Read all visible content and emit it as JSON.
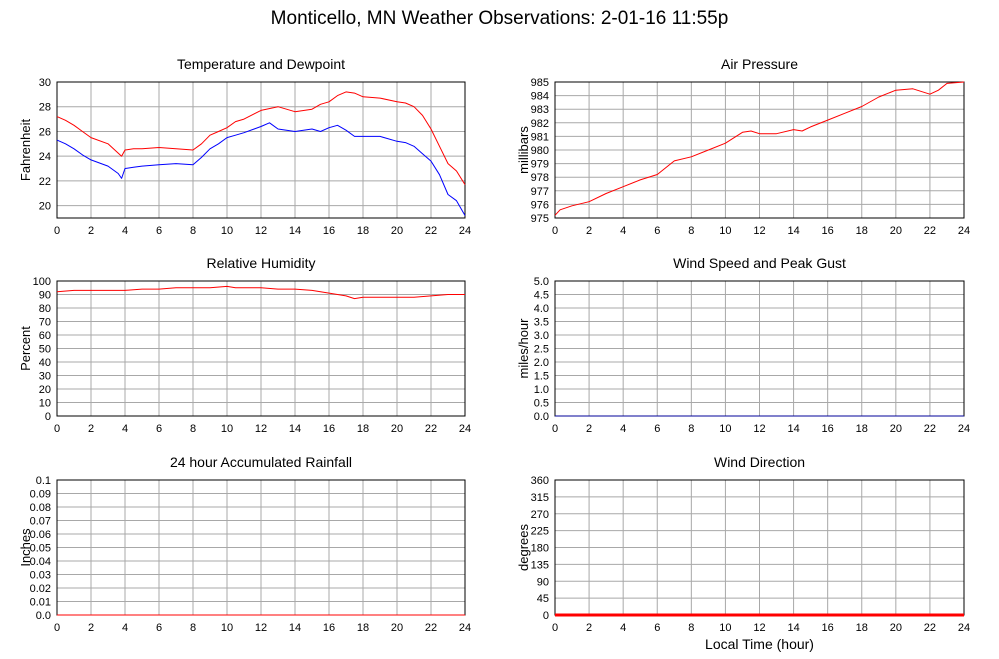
{
  "page": {
    "title": "Monticello, MN Weather Observations: 2-01-16 11:55p",
    "xaxis_label": "Local Time (hour)"
  },
  "chart_data": [
    {
      "type": "line",
      "title": "Temperature and Dewpoint",
      "xlabel": "",
      "ylabel": "Fahrenheit",
      "xlim": [
        0,
        24
      ],
      "ylim": [
        19,
        30
      ],
      "x_ticks": [
        0,
        2,
        4,
        6,
        8,
        10,
        12,
        14,
        16,
        18,
        20,
        22,
        24
      ],
      "y_ticks": [
        20,
        22,
        24,
        26,
        28,
        30
      ],
      "grid": true,
      "series": [
        {
          "color": "#ff0000",
          "x": [
            0,
            0.5,
            1,
            1.5,
            2,
            3,
            3.8,
            4,
            4.5,
            5,
            6,
            7,
            8,
            8.5,
            9,
            9.5,
            10,
            10.5,
            11,
            12,
            13,
            14,
            15,
            15.5,
            16,
            16.5,
            17,
            17.5,
            18,
            19,
            20,
            20.5,
            21,
            21.5,
            22,
            22.5,
            23,
            23.5,
            24
          ],
          "y": [
            27.2,
            26.9,
            26.5,
            26.0,
            25.5,
            25.0,
            24.0,
            24.5,
            24.6,
            24.6,
            24.7,
            24.6,
            24.5,
            25.0,
            25.7,
            26.0,
            26.3,
            26.8,
            27.0,
            27.7,
            28.0,
            27.6,
            27.8,
            28.2,
            28.4,
            28.9,
            29.2,
            29.1,
            28.8,
            28.7,
            28.4,
            28.3,
            28.0,
            27.3,
            26.2,
            24.8,
            23.4,
            22.8,
            21.7
          ]
        },
        {
          "color": "#0000ff",
          "x": [
            0,
            0.5,
            1,
            1.5,
            2,
            3,
            3.6,
            3.8,
            4,
            4.5,
            5,
            6,
            7,
            8,
            8.5,
            9,
            9.5,
            10,
            10.5,
            11,
            12,
            12.5,
            13,
            14,
            15,
            15.5,
            16,
            16.5,
            17,
            17.5,
            18,
            19,
            20,
            20.5,
            21,
            21.5,
            22,
            22.5,
            23,
            23.5,
            24
          ],
          "y": [
            25.3,
            25.0,
            24.6,
            24.1,
            23.7,
            23.2,
            22.6,
            22.2,
            23.0,
            23.1,
            23.2,
            23.3,
            23.4,
            23.3,
            23.9,
            24.6,
            25.0,
            25.5,
            25.7,
            25.9,
            26.4,
            26.7,
            26.2,
            26.0,
            26.2,
            26.0,
            26.3,
            26.5,
            26.1,
            25.6,
            25.6,
            25.6,
            25.2,
            25.1,
            24.8,
            24.2,
            23.6,
            22.5,
            20.9,
            20.4,
            19.2
          ]
        }
      ]
    },
    {
      "type": "line",
      "title": "Air Pressure",
      "xlabel": "",
      "ylabel": "millibars",
      "xlim": [
        0,
        24
      ],
      "ylim": [
        975,
        985
      ],
      "x_ticks": [
        0,
        2,
        4,
        6,
        8,
        10,
        12,
        14,
        16,
        18,
        20,
        22,
        24
      ],
      "y_ticks": [
        975,
        976,
        977,
        978,
        979,
        980,
        981,
        982,
        983,
        984,
        985
      ],
      "grid": true,
      "series": [
        {
          "color": "#ff0000",
          "x": [
            0,
            0.3,
            1,
            2,
            3,
            4,
            5,
            6,
            7,
            8,
            9,
            10,
            11,
            11.5,
            12,
            13,
            14,
            14.5,
            15,
            16,
            17,
            18,
            19,
            20,
            21,
            22,
            22.5,
            23,
            24
          ],
          "y": [
            975.2,
            975.6,
            975.9,
            976.2,
            976.8,
            977.3,
            977.8,
            978.2,
            979.2,
            979.5,
            980.0,
            980.5,
            981.3,
            981.4,
            981.2,
            981.2,
            981.5,
            981.4,
            981.7,
            982.2,
            982.7,
            983.2,
            983.9,
            984.4,
            984.5,
            984.1,
            984.4,
            984.9,
            985.0
          ]
        }
      ]
    },
    {
      "type": "line",
      "title": "Relative Humidity",
      "xlabel": "",
      "ylabel": "Percent",
      "xlim": [
        0,
        24
      ],
      "ylim": [
        0,
        100
      ],
      "x_ticks": [
        0,
        2,
        4,
        6,
        8,
        10,
        12,
        14,
        16,
        18,
        20,
        22,
        24
      ],
      "y_ticks": [
        0,
        10,
        20,
        30,
        40,
        50,
        60,
        70,
        80,
        90,
        100
      ],
      "grid": true,
      "series": [
        {
          "color": "#ff0000",
          "x": [
            0,
            1,
            2,
            3,
            4,
            5,
            6,
            7,
            8,
            9,
            10,
            10.5,
            11,
            12,
            13,
            14,
            15,
            15.5,
            16,
            17,
            17.5,
            18,
            19,
            20,
            21,
            22,
            23,
            24
          ],
          "y": [
            92,
            93,
            93,
            93,
            93,
            94,
            94,
            95,
            95,
            95,
            96,
            95,
            95,
            95,
            94,
            94,
            93,
            92,
            91,
            89,
            87,
            88,
            88,
            88,
            88,
            89,
            90,
            90
          ]
        }
      ]
    },
    {
      "type": "line",
      "title": "Wind Speed and Peak Gust",
      "xlabel": "",
      "ylabel": "miles/hour",
      "xlim": [
        0,
        24
      ],
      "ylim": [
        0,
        5
      ],
      "x_ticks": [
        0,
        2,
        4,
        6,
        8,
        10,
        12,
        14,
        16,
        18,
        20,
        22,
        24
      ],
      "y_ticks": [
        "0.0",
        "0.5",
        "1.0",
        "1.5",
        "2.0",
        "2.5",
        "3.0",
        "3.5",
        "4.0",
        "4.5",
        "5.0"
      ],
      "grid": true,
      "series": [
        {
          "color": "#000099",
          "x": [
            0,
            24
          ],
          "y": [
            0,
            0
          ]
        }
      ]
    },
    {
      "type": "line",
      "title": "24 hour Accumulated Rainfall",
      "xlabel": "",
      "ylabel": "Inches",
      "xlim": [
        0,
        24
      ],
      "ylim": [
        0,
        0.1
      ],
      "x_ticks": [
        0,
        2,
        4,
        6,
        8,
        10,
        12,
        14,
        16,
        18,
        20,
        22,
        24
      ],
      "y_ticks": [
        "0.0",
        "0.01",
        "0.02",
        "0.03",
        "0.04",
        "0.05",
        "0.06",
        "0.07",
        "0.08",
        "0.09",
        "0.1"
      ],
      "grid": true,
      "series": [
        {
          "color": "#ff0000",
          "x": [
            0,
            24
          ],
          "y": [
            0,
            0
          ]
        }
      ]
    },
    {
      "type": "line",
      "title": "Wind Direction",
      "xlabel": "Local Time (hour)",
      "ylabel": "degrees",
      "xlim": [
        0,
        24
      ],
      "ylim": [
        0,
        360
      ],
      "x_ticks": [
        0,
        2,
        4,
        6,
        8,
        10,
        12,
        14,
        16,
        18,
        20,
        22,
        24
      ],
      "y_ticks": [
        0,
        45,
        90,
        135,
        180,
        225,
        270,
        315,
        360
      ],
      "grid": true,
      "series": [
        {
          "color": "#ff0000",
          "x": [
            0,
            24
          ],
          "y": [
            0,
            0
          ]
        }
      ]
    }
  ]
}
